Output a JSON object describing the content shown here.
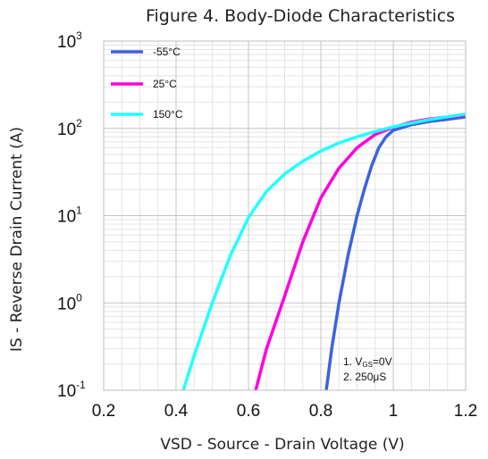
{
  "chart_data": {
    "type": "line",
    "title": "Figure 4. Body-Diode Characteristics",
    "xlabel": "VSD - Source - Drain Voltage (V)",
    "ylabel": "IS - Reverse Drain Current (A)",
    "xlim": [
      0.2,
      1.2
    ],
    "ylim": [
      0.1,
      1000
    ],
    "yscale": "log",
    "grid": true,
    "legend_position": "top-left",
    "x_ticks": [
      "0.2",
      "0.4",
      "0.6",
      "0.8",
      "1",
      "1.2"
    ],
    "y_ticks": [
      {
        "base": "10",
        "exp": "-1"
      },
      {
        "base": "10",
        "exp": "0"
      },
      {
        "base": "10",
        "exp": "1"
      },
      {
        "base": "10",
        "exp": "2"
      },
      {
        "base": "10",
        "exp": "3"
      }
    ],
    "series": [
      {
        "name": "-55°C",
        "color": "#3b63e0",
        "x": [
          0.815,
          0.83,
          0.85,
          0.875,
          0.9,
          0.92,
          0.94,
          0.96,
          0.98,
          1.0,
          1.05,
          1.1,
          1.15,
          1.2
        ],
        "y": [
          0.1,
          0.3,
          1.0,
          3.5,
          10,
          20,
          37,
          60,
          80,
          95,
          110,
          120,
          127,
          135
        ]
      },
      {
        "name": "25°C",
        "color": "#ff00dd",
        "x": [
          0.62,
          0.65,
          0.7,
          0.75,
          0.8,
          0.85,
          0.9,
          0.95,
          1.0,
          1.05,
          1.1,
          1.15,
          1.2
        ],
        "y": [
          0.1,
          0.3,
          1.2,
          5.0,
          16,
          35,
          60,
          85,
          103,
          118,
          128,
          135,
          142
        ]
      },
      {
        "name": "150°C",
        "color": "#22ffff",
        "x": [
          0.42,
          0.45,
          0.5,
          0.55,
          0.6,
          0.65,
          0.7,
          0.75,
          0.8,
          0.85,
          0.9,
          0.95,
          1.0,
          1.05,
          1.1,
          1.15,
          1.2
        ],
        "y": [
          0.1,
          0.25,
          1.0,
          3.5,
          9.5,
          19,
          30,
          42,
          55,
          68,
          80,
          92,
          104,
          115,
          126,
          136,
          146
        ]
      }
    ],
    "annotations": {
      "line1_prefix": "1. V",
      "line1_sub": "GS",
      "line1_suffix": "=0V",
      "line2": "2. 250μS"
    }
  }
}
